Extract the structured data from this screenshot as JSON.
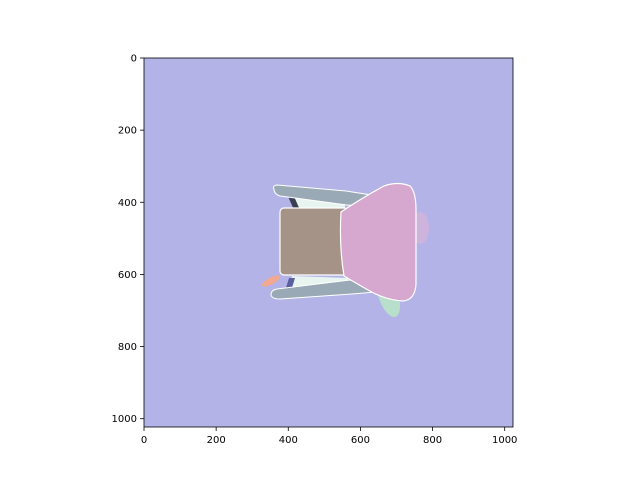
{
  "chart_data": {
    "type": "image",
    "xlim": [
      0,
      1023
    ],
    "ylim": [
      1023,
      0
    ],
    "x_ticks": [
      {
        "value": 0,
        "label": "0"
      },
      {
        "value": 200,
        "label": "200"
      },
      {
        "value": 400,
        "label": "400"
      },
      {
        "value": 600,
        "label": "600"
      },
      {
        "value": 800,
        "label": "800"
      },
      {
        "value": 1000,
        "label": "1000"
      }
    ],
    "y_ticks": [
      {
        "value": 0,
        "label": "0"
      },
      {
        "value": 200,
        "label": "200"
      },
      {
        "value": 400,
        "label": "400"
      },
      {
        "value": 600,
        "label": "600"
      },
      {
        "value": 800,
        "label": "800"
      },
      {
        "value": 1000,
        "label": "1000"
      }
    ],
    "grid": false,
    "colors": {
      "background": "#b3b3e8",
      "frame_rails": "#9aa9b6",
      "rail_outline": "#ffffff",
      "seat_panel": "#a59387",
      "seat_back": "#d6a7cf",
      "inner_gap": "#e8f4ef",
      "dark_edge": "#3a3f52",
      "shadow_green": "#b7e3c9",
      "orange_blob": "#f2a891",
      "pink_blob": "#ddb4d6"
    }
  }
}
